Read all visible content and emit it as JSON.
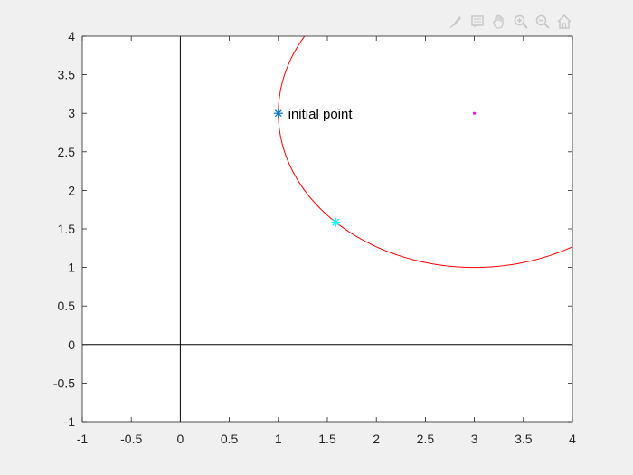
{
  "chart_data": {
    "type": "line",
    "title": "",
    "xlabel": "",
    "ylabel": "",
    "xlim": [
      -1,
      4
    ],
    "ylim": [
      -1,
      4
    ],
    "x_ticks": [
      -1,
      -0.5,
      0,
      0.5,
      1,
      1.5,
      2,
      2.5,
      3,
      3.5,
      4
    ],
    "y_ticks": [
      -1,
      -0.5,
      0,
      0.5,
      1,
      1.5,
      2,
      2.5,
      3,
      3.5,
      4
    ],
    "x_tick_labels": [
      "-1",
      "-0.5",
      "0",
      "0.5",
      "1",
      "1.5",
      "2",
      "2.5",
      "3",
      "3.5",
      "4"
    ],
    "y_tick_labels": [
      "-1",
      "-0.5",
      "0",
      "0.5",
      "1",
      "1.5",
      "2",
      "2.5",
      "3",
      "3.5",
      "4"
    ],
    "grid": false,
    "reference_lines": {
      "x": 0,
      "y": 0,
      "color": "#000000"
    },
    "series": [
      {
        "type": "circle",
        "center": [
          3,
          3
        ],
        "radius": 2,
        "color": "#ff0000"
      },
      {
        "type": "scatter",
        "marker": "asterisk",
        "color": "#0072bd",
        "points": [
          [
            1,
            3
          ]
        ]
      },
      {
        "type": "scatter",
        "marker": "asterisk",
        "color": "#00ffff",
        "points": [
          [
            1.586,
            1.586
          ]
        ]
      },
      {
        "type": "scatter",
        "marker": "dot",
        "color": "#ff00ff",
        "points": [
          [
            3,
            3
          ]
        ]
      }
    ],
    "annotations": [
      {
        "text": "initial point",
        "x": 1.1,
        "y": 3
      }
    ]
  },
  "toolbar": {
    "icons": [
      "brush-icon",
      "data-tips-icon",
      "pan-icon",
      "zoom-in-icon",
      "zoom-out-icon",
      "home-icon"
    ]
  }
}
